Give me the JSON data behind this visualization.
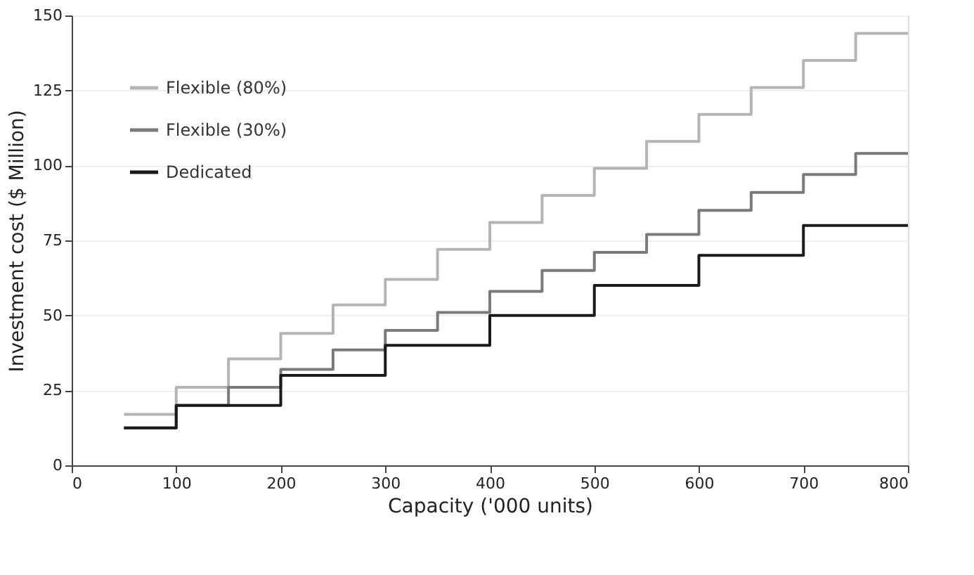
{
  "chart_data": {
    "type": "step",
    "xlabel": "Capacity ('000 units)",
    "ylabel": "Investment cost ($ Million)",
    "xlim": [
      0,
      800
    ],
    "xticks": [
      0,
      100,
      200,
      300,
      400,
      500,
      600,
      700,
      800
    ],
    "ylim": [
      0,
      150
    ],
    "yticks": [
      0,
      25,
      50,
      75,
      100,
      125,
      150
    ],
    "grid": "y",
    "legend": "top left",
    "line_style": "solid",
    "marker": "none",
    "series": [
      {
        "name": "Flexible (80%)",
        "color": "#b4b4b4",
        "x": [
          50,
          100,
          150,
          200,
          250,
          300,
          350,
          400,
          450,
          500,
          550,
          600,
          650,
          700,
          750,
          800
        ],
        "values": [
          17,
          26,
          35.5,
          44,
          53.5,
          62,
          72,
          81,
          90,
          99,
          108,
          117,
          126,
          135,
          144,
          144
        ]
      },
      {
        "name": "Flexible (30%)",
        "color": "#7a7a7a",
        "x": [
          50,
          100,
          150,
          200,
          250,
          300,
          350,
          400,
          450,
          500,
          550,
          600,
          650,
          700,
          750,
          800
        ],
        "values": [
          12.5,
          20,
          26,
          32,
          38.5,
          45,
          51,
          58,
          65,
          71,
          77,
          85,
          91,
          97,
          104,
          104
        ]
      },
      {
        "name": "Dedicated",
        "color": "#1a1a1a",
        "x": [
          50,
          100,
          200,
          300,
          400,
          500,
          600,
          700,
          800
        ],
        "values": [
          12.5,
          20,
          30,
          40,
          50,
          60,
          70,
          80,
          80
        ]
      }
    ]
  }
}
